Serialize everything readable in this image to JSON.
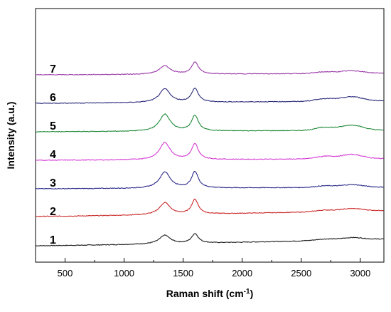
{
  "chart_data": {
    "type": "line",
    "title": "",
    "xlabel": "Raman shift (cm",
    "xlabel_sup": "-1",
    "xlabel_close": ")",
    "ylabel": "Intensity (a.u.)",
    "xlim": [
      250,
      3200
    ],
    "x_ticks": [
      500,
      1000,
      1500,
      2000,
      2500,
      3000
    ],
    "x_tick_labels": [
      "500",
      "1000",
      "1500",
      "2000",
      "2500",
      "3000"
    ],
    "y_ticks_shown": false,
    "grid": false,
    "legend": "none; curves numbered at left",
    "series": [
      {
        "name": "1",
        "color": "#1a1a1a",
        "D_peak": 1.0,
        "G_peak": 1.1,
        "baseline_start": 0.0,
        "baseline_end": 0.8,
        "second_order": 0.25,
        "offset": 0
      },
      {
        "name": "2",
        "color": "#cc2a2a",
        "D_peak": 1.4,
        "G_peak": 1.7,
        "baseline_start": 0.1,
        "baseline_end": 0.8,
        "second_order": 0.3,
        "offset": 1
      },
      {
        "name": "3",
        "color": "#2a2a8a",
        "D_peak": 1.9,
        "G_peak": 1.9,
        "baseline_start": 0.0,
        "baseline_end": 0.2,
        "second_order": 0.3,
        "offset": 2
      },
      {
        "name": "4",
        "color": "#d43ad4",
        "D_peak": 2.0,
        "G_peak": 1.8,
        "baseline_start": 0.0,
        "baseline_end": 0.2,
        "second_order": 0.5,
        "offset": 3
      },
      {
        "name": "5",
        "color": "#1f8a3a",
        "D_peak": 2.0,
        "G_peak": 1.8,
        "baseline_start": 0.0,
        "baseline_end": 0.2,
        "second_order": 0.6,
        "offset": 4
      },
      {
        "name": "6",
        "color": "#2a2a7a",
        "D_peak": 1.6,
        "G_peak": 1.6,
        "baseline_start": 0.0,
        "baseline_end": 0.3,
        "second_order": 0.5,
        "offset": 5
      },
      {
        "name": "7",
        "color": "#9a3aa8",
        "D_peak": 1.0,
        "G_peak": 1.4,
        "baseline_start": 0.0,
        "baseline_end": 0.2,
        "second_order": 0.3,
        "offset": 6
      }
    ]
  }
}
